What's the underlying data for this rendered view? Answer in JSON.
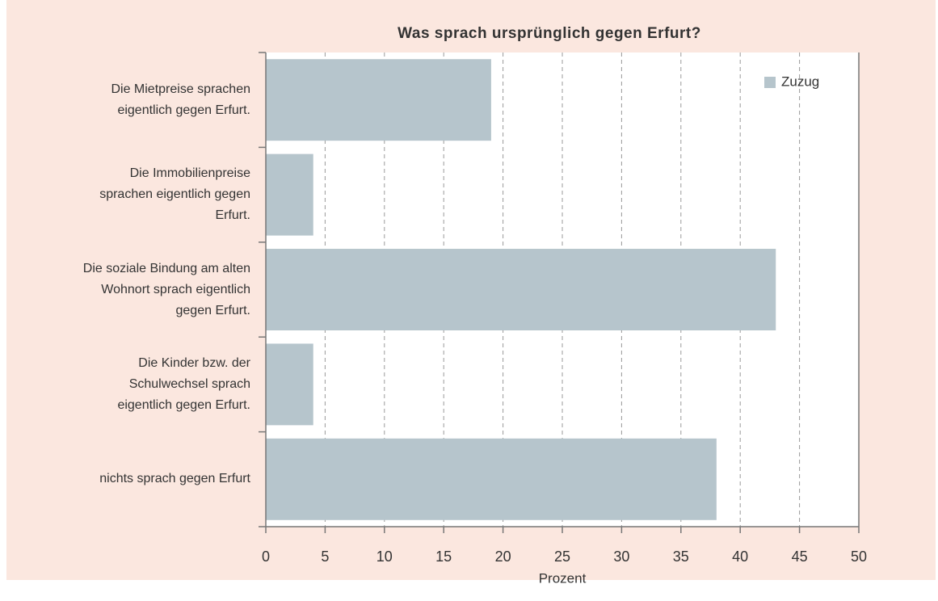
{
  "chart_data": {
    "type": "barh",
    "title": "Was sprach ursprünglich gegen Erfurt?",
    "categories": [
      "Die Mietpreise sprachen\neigentlich gegen Erfurt.",
      "Die Immobilienpreise\nsprachen eigentlich gegen\nErfurt.",
      "Die soziale Bindung am alten\nWohnort sprach eigentlich\ngegen Erfurt.",
      "Die Kinder bzw. der\nSchulwechsel sprach\neigentlich gegen Erfurt.",
      "nichts sprach gegen Erfurt"
    ],
    "series": [
      {
        "name": "Zuzug",
        "color": "#b6c5cc",
        "values": [
          19,
          4,
          43,
          4,
          38
        ]
      }
    ],
    "xlabel": "Prozent",
    "xlim": [
      0,
      50
    ],
    "xticks": [
      0,
      5,
      10,
      15,
      20,
      25,
      30,
      35,
      40,
      45,
      50
    ],
    "grid": true,
    "legend": "upper right"
  }
}
